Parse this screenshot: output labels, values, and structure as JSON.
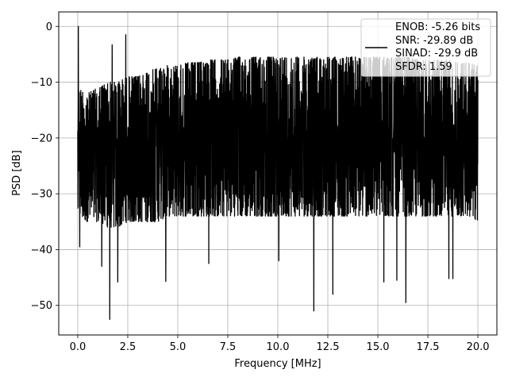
{
  "chart_data": {
    "type": "line",
    "title": "",
    "xlabel": "Frequency [MHz]",
    "ylabel": "PSD [dB]",
    "xlim": [
      -0.95,
      20.95
    ],
    "ylim": [
      -55.3,
      2.6
    ],
    "xticks": [
      0.0,
      2.5,
      5.0,
      7.5,
      10.0,
      12.5,
      15.0,
      17.5,
      20.0
    ],
    "xtick_labels": [
      "0.0",
      "2.5",
      "5.0",
      "7.5",
      "10.0",
      "12.5",
      "15.0",
      "17.5",
      "20.0"
    ],
    "yticks": [
      0,
      -10,
      -20,
      -30,
      -40,
      -50
    ],
    "ytick_labels": [
      "0",
      "−10",
      "−20",
      "−30",
      "−40",
      "−50"
    ],
    "grid": true,
    "legend_position": "upper-right",
    "legend_lines": [
      "ENOB: -5.26 bits",
      "SNR: -29.89 dB",
      "SINAD: -29.9 dB",
      "SFDR: 1.59"
    ],
    "series": [
      {
        "color": "#000000",
        "x_range": [
          0,
          20
        ],
        "envelope": {
          "x": [
            0.0,
            0.5,
            1.0,
            1.5,
            2.0,
            2.5,
            3.0,
            3.5,
            4.0,
            4.5,
            5.0,
            5.5,
            6.0,
            6.5,
            7.0,
            7.5,
            8.0,
            8.5,
            9.0,
            9.5,
            10.0,
            10.5,
            11.0,
            11.5,
            12.0,
            12.5,
            13.0,
            13.5,
            14.0,
            14.5,
            15.0,
            15.5,
            16.0,
            16.5,
            17.0,
            17.5,
            18.0,
            18.5,
            19.0,
            19.5,
            20.0
          ],
          "upper": [
            -11,
            -12,
            -11,
            -10,
            -10,
            -9,
            -9,
            -8,
            -7.5,
            -7,
            -7,
            -6.5,
            -6.5,
            -6,
            -6,
            -6,
            -5.5,
            -5.5,
            -5.5,
            -5.5,
            -5.5,
            -5.5,
            -5.5,
            -5.5,
            -5.5,
            -5.5,
            -5.5,
            -5.5,
            -5.5,
            -5.5,
            -5.5,
            -5.5,
            -5.5,
            -5.5,
            -6,
            -6,
            -6,
            -6,
            -6.5,
            -6.5,
            -7
          ],
          "lower": [
            -34,
            -35,
            -35,
            -36,
            -36,
            -35,
            -35,
            -35,
            -35,
            -34,
            -34,
            -34,
            -34,
            -34,
            -34,
            -34,
            -34,
            -34,
            -34,
            -34,
            -34,
            -34,
            -34,
            -34,
            -34,
            -34,
            -34,
            -34,
            -34,
            -34,
            -34,
            -34,
            -34,
            -34,
            -34,
            -34,
            -34,
            -34,
            -34,
            -34,
            -35
          ]
        },
        "peaks": [
          {
            "x": 0.03,
            "y": 0.0
          },
          {
            "x": 1.72,
            "y": -3.3
          },
          {
            "x": 2.4,
            "y": -1.5
          }
        ],
        "dips": [
          {
            "x": 1.6,
            "y": -52.5
          },
          {
            "x": 11.8,
            "y": -51.0
          },
          {
            "x": 12.75,
            "y": -48.0
          },
          {
            "x": 16.4,
            "y": -49.5
          },
          {
            "x": 18.55,
            "y": -45.2
          },
          {
            "x": 18.75,
            "y": -45.2
          },
          {
            "x": 15.3,
            "y": -45.8
          },
          {
            "x": 15.95,
            "y": -45.5
          },
          {
            "x": 4.4,
            "y": -45.7
          },
          {
            "x": 1.2,
            "y": -43.0
          },
          {
            "x": 2.0,
            "y": -45.8
          },
          {
            "x": 6.55,
            "y": -42.5
          },
          {
            "x": 10.05,
            "y": -42.0
          },
          {
            "x": 0.1,
            "y": -39.5
          }
        ]
      }
    ]
  }
}
